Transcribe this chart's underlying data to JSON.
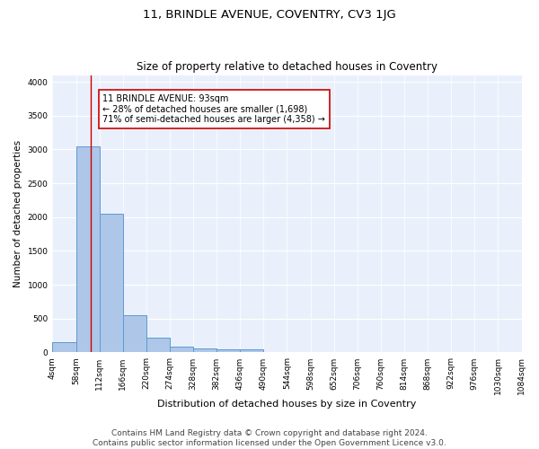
{
  "title1": "11, BRINDLE AVENUE, COVENTRY, CV3 1JG",
  "title2": "Size of property relative to detached houses in Coventry",
  "xlabel": "Distribution of detached houses by size in Coventry",
  "ylabel": "Number of detached properties",
  "bin_edges": [
    4,
    58,
    112,
    166,
    220,
    274,
    328,
    382,
    436,
    490,
    544,
    598,
    652,
    706,
    760,
    814,
    868,
    922,
    976,
    1030,
    1084
  ],
  "bar_heights": [
    150,
    3050,
    2050,
    550,
    220,
    80,
    60,
    50,
    50,
    0,
    0,
    0,
    0,
    0,
    0,
    0,
    0,
    0,
    0,
    0
  ],
  "bar_color": "#aec6e8",
  "bar_edge_color": "#5b9bd5",
  "bg_color": "#eaf0fb",
  "grid_color": "#ffffff",
  "property_sqm": 93,
  "vline_color": "#cc0000",
  "annotation_text": "11 BRINDLE AVENUE: 93sqm\n← 28% of detached houses are smaller (1,698)\n71% of semi-detached houses are larger (4,358) →",
  "annotation_box_color": "#ffffff",
  "annotation_box_edge": "#cc0000",
  "ylim": [
    0,
    4100
  ],
  "yticks": [
    0,
    500,
    1000,
    1500,
    2000,
    2500,
    3000,
    3500,
    4000
  ],
  "footer1": "Contains HM Land Registry data © Crown copyright and database right 2024.",
  "footer2": "Contains public sector information licensed under the Open Government Licence v3.0.",
  "title1_fontsize": 9.5,
  "title2_fontsize": 8.5,
  "xlabel_fontsize": 8,
  "ylabel_fontsize": 7.5,
  "tick_fontsize": 6.5,
  "annot_fontsize": 7,
  "footer_fontsize": 6.5
}
